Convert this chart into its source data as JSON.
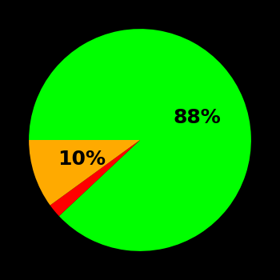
{
  "slices": [
    88,
    2,
    10
  ],
  "colors": [
    "#00ff00",
    "#ff0000",
    "#ffaa00"
  ],
  "labels": [
    "88%",
    "",
    "10%"
  ],
  "background_color": "#000000",
  "label_fontsize": 18,
  "label_color": "#000000",
  "startangle": 180,
  "label_radii": [
    0.55,
    0.0,
    0.55
  ],
  "figsize": [
    3.5,
    3.5
  ],
  "dpi": 100
}
